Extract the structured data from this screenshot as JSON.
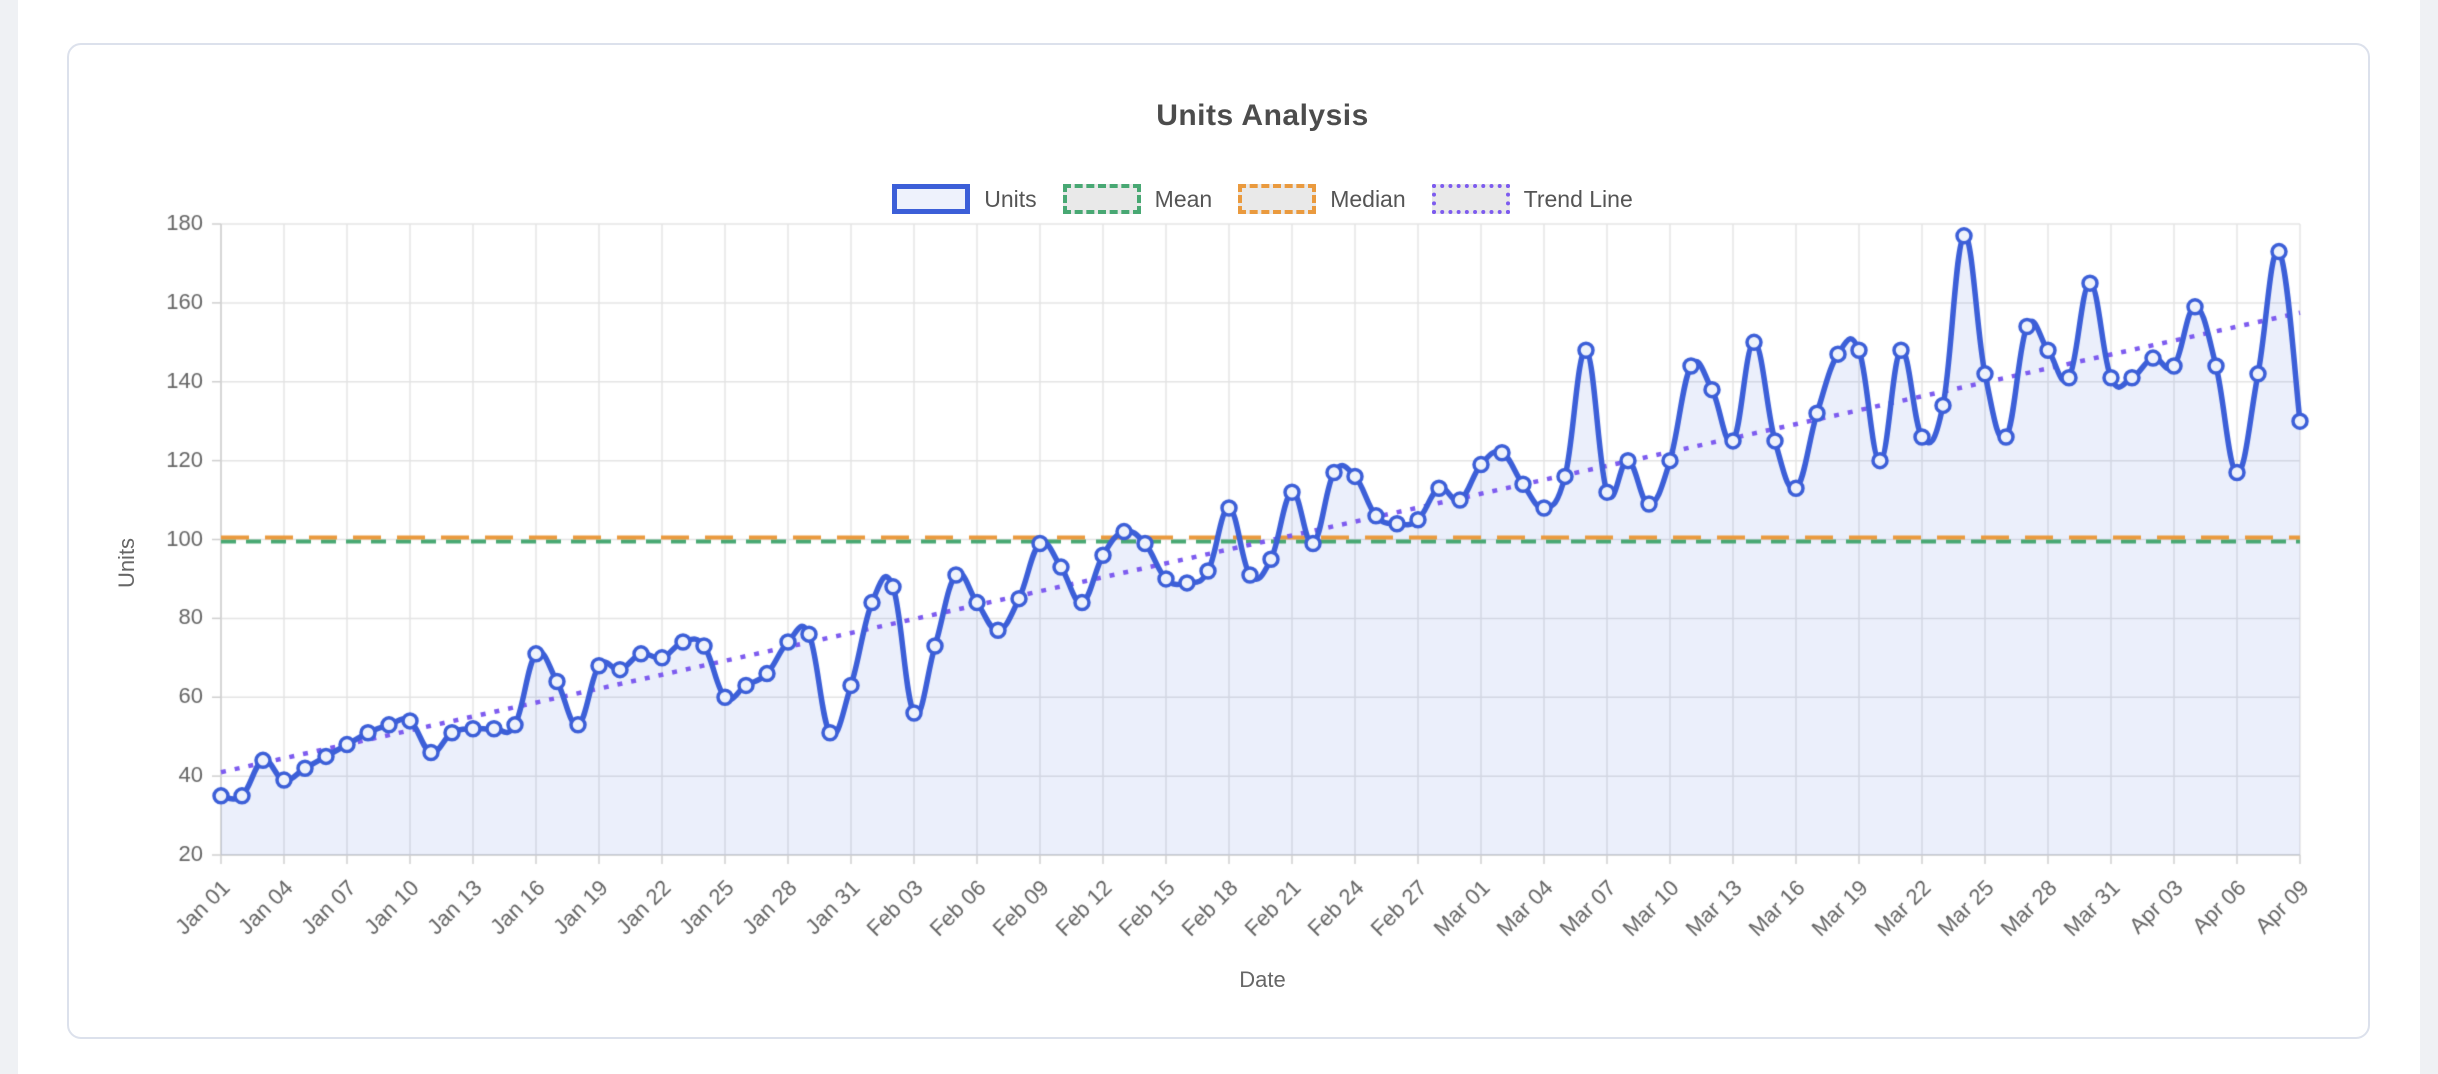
{
  "card": {
    "background": "#ffffff",
    "border_color": "#dce1ec"
  },
  "page": {
    "gutter_color": "#eff1f4"
  },
  "chart": {
    "title": "Units Analysis",
    "x_axis_title": "Date",
    "y_axis_title": "Units",
    "legend": [
      {
        "label": "Units",
        "color": "#3c5fd8",
        "fill": "#eef2fc",
        "style": "solid"
      },
      {
        "label": "Mean",
        "color": "#48a873",
        "fill": "#e9e9e9",
        "style": "dashed"
      },
      {
        "label": "Median",
        "color": "#ea9a3e",
        "fill": "#e9e9e9",
        "style": "dashed"
      },
      {
        "label": "Trend Line",
        "color": "#7d5bef",
        "fill": "#e9e9e9",
        "style": "dotted"
      }
    ]
  },
  "chart_data": {
    "type": "line",
    "title": "Units Analysis",
    "xlabel": "Date",
    "ylabel": "Units",
    "ylim": [
      20,
      180
    ],
    "y_ticks": [
      20,
      40,
      60,
      80,
      100,
      120,
      140,
      160,
      180
    ],
    "grid": true,
    "legend_position": "top",
    "x": [
      "Jan 01",
      "Jan 02",
      "Jan 03",
      "Jan 04",
      "Jan 05",
      "Jan 06",
      "Jan 07",
      "Jan 08",
      "Jan 09",
      "Jan 10",
      "Jan 11",
      "Jan 12",
      "Jan 13",
      "Jan 14",
      "Jan 15",
      "Jan 16",
      "Jan 17",
      "Jan 18",
      "Jan 19",
      "Jan 20",
      "Jan 21",
      "Jan 22",
      "Jan 23",
      "Jan 24",
      "Jan 25",
      "Jan 26",
      "Jan 27",
      "Jan 28",
      "Jan 29",
      "Jan 30",
      "Jan 31",
      "Feb 01",
      "Feb 02",
      "Feb 03",
      "Feb 04",
      "Feb 05",
      "Feb 06",
      "Feb 07",
      "Feb 08",
      "Feb 09",
      "Feb 10",
      "Feb 11",
      "Feb 12",
      "Feb 13",
      "Feb 14",
      "Feb 15",
      "Feb 16",
      "Feb 17",
      "Feb 18",
      "Feb 19",
      "Feb 20",
      "Feb 21",
      "Feb 22",
      "Feb 23",
      "Feb 24",
      "Feb 25",
      "Feb 26",
      "Feb 27",
      "Feb 28",
      "Feb 29",
      "Mar 01",
      "Mar 02",
      "Mar 03",
      "Mar 04",
      "Mar 05",
      "Mar 06",
      "Mar 07",
      "Mar 08",
      "Mar 09",
      "Mar 10",
      "Mar 11",
      "Mar 12",
      "Mar 13",
      "Mar 14",
      "Mar 15",
      "Mar 16",
      "Mar 17",
      "Mar 18",
      "Mar 19",
      "Mar 20",
      "Mar 21",
      "Mar 22",
      "Mar 23",
      "Mar 24",
      "Mar 25",
      "Mar 26",
      "Mar 27",
      "Mar 28",
      "Mar 29",
      "Mar 30",
      "Mar 31",
      "Apr 01",
      "Apr 02",
      "Apr 03",
      "Apr 04",
      "Apr 05",
      "Apr 06",
      "Apr 07",
      "Apr 08",
      "Apr 09"
    ],
    "x_tick_labels": [
      "Jan 01",
      "Jan 04",
      "Jan 07",
      "Jan 10",
      "Jan 13",
      "Jan 16",
      "Jan 19",
      "Jan 22",
      "Jan 25",
      "Jan 28",
      "Jan 31",
      "Feb 03",
      "Feb 06",
      "Feb 09",
      "Feb 12",
      "Feb 15",
      "Feb 18",
      "Feb 21",
      "Feb 24",
      "Feb 27",
      "Mar 01",
      "Mar 04",
      "Mar 07",
      "Mar 10",
      "Mar 13",
      "Mar 16",
      "Mar 19",
      "Mar 22",
      "Mar 25",
      "Mar 28",
      "Mar 31",
      "Apr 03",
      "Apr 06",
      "Apr 09"
    ],
    "x_tick_every": 3,
    "series": [
      {
        "name": "Units",
        "values": [
          35,
          35,
          44,
          39,
          42,
          45,
          48,
          51,
          53,
          54,
          46,
          51,
          52,
          52,
          53,
          71,
          64,
          53,
          68,
          67,
          71,
          70,
          74,
          73,
          60,
          63,
          66,
          74,
          76,
          51,
          63,
          84,
          88,
          56,
          73,
          91,
          84,
          77,
          85,
          99,
          93,
          84,
          96,
          102,
          99,
          90,
          89,
          92,
          108,
          91,
          95,
          112,
          99,
          117,
          116,
          106,
          104,
          105,
          113,
          110,
          119,
          122,
          114,
          108,
          116,
          148,
          112,
          120,
          109,
          120,
          144,
          138,
          125,
          150,
          125,
          113,
          132,
          147,
          148,
          120,
          148,
          126,
          134,
          177,
          142,
          126,
          154,
          148,
          141,
          165,
          141,
          141,
          146,
          144,
          159,
          144,
          117,
          142,
          173,
          130
        ]
      },
      {
        "name": "Mean",
        "value": 99.5
      },
      {
        "name": "Median",
        "value": 100.5
      },
      {
        "name": "Trend Line",
        "start": 41,
        "end": 157.5
      }
    ],
    "style": {
      "line_color": "#3c5fd8",
      "area_fill": "rgba(60,95,216,0.10)",
      "marker_fill": "#eef2fb",
      "mean_color": "#48a873",
      "median_color": "#ea9a3e",
      "trend_color": "#7d5bef",
      "grid_color": "#e4e4e4",
      "axis_border_color": "#cfcfcf",
      "tick_text_color": "#666666"
    }
  }
}
